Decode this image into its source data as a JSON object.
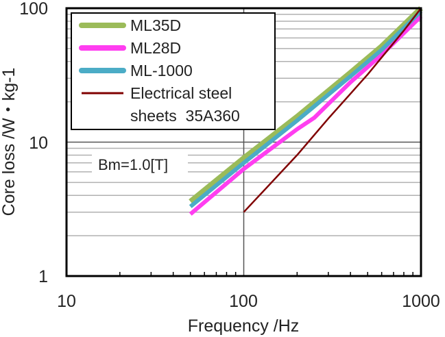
{
  "chart_data": {
    "type": "line",
    "title": "",
    "xlabel": "Frequency /Hz",
    "ylabel": "Core loss /W・kg-1",
    "xscale": "log",
    "yscale": "log",
    "xlim": [
      10,
      1000
    ],
    "ylim": [
      1,
      100
    ],
    "x_ticks": [
      "10",
      "100",
      "1000"
    ],
    "y_ticks": [
      "1",
      "10",
      "100"
    ],
    "grid": "horizontal minor gridlines, vertical line at 100",
    "legend_position": "top-left",
    "annotation": "Bm=1.0[T]",
    "series": [
      {
        "name": "ML35D",
        "color": "#9bbb59",
        "x": [
          50,
          100,
          200,
          400,
          600,
          1000
        ],
        "y": [
          3.6,
          7.6,
          15.5,
          33,
          52,
          100
        ]
      },
      {
        "name": "ML28D",
        "color": "#ff3ef0",
        "x": [
          50,
          100,
          200,
          250,
          400,
          600,
          1000
        ],
        "y": [
          2.9,
          6.3,
          12.5,
          15.2,
          28,
          45,
          87
        ]
      },
      {
        "name": "ML-1000",
        "color": "#4bacc6",
        "x": [
          50,
          100,
          200,
          400,
          600,
          1000
        ],
        "y": [
          3.3,
          7,
          14.5,
          31,
          49,
          95
        ]
      },
      {
        "name_line1": "Electrical steel",
        "name_line2": "sheets  35A360",
        "color": "#800000",
        "x": [
          100,
          200,
          300,
          500,
          800,
          1000
        ],
        "y": [
          3,
          8,
          15,
          32,
          68,
          100
        ]
      }
    ]
  }
}
